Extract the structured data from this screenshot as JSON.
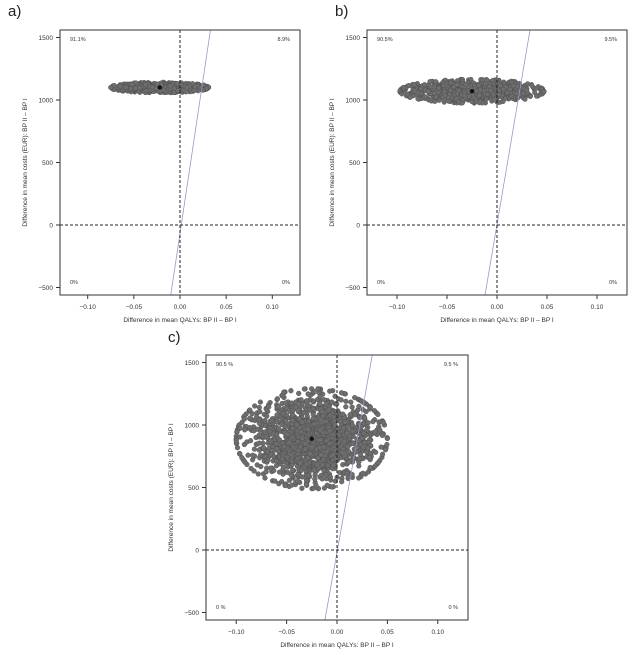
{
  "panels": [
    {
      "label": "a)"
    },
    {
      "label": "b)"
    },
    {
      "label": "c)"
    }
  ],
  "chart_data": [
    {
      "type": "scatter",
      "title": "",
      "xlabel": "Difference in mean QALYs: BP II – BP I",
      "ylabel": "Difference in mean costs (EUR): BP II – BP I",
      "xlim": [
        -0.13,
        0.13
      ],
      "ylim": [
        -560,
        1560
      ],
      "xticks": [
        -0.1,
        -0.05,
        0.0,
        0.05,
        0.1
      ],
      "xtick_labels": [
        "−0.10",
        "−0.05",
        "0.00",
        "0.05",
        "0.10"
      ],
      "yticks": [
        -500,
        0,
        500,
        1000,
        1500
      ],
      "ytick_labels": [
        "−500",
        "0",
        "500",
        "1000",
        "1500"
      ],
      "quadrant_labels": [
        "91.1%",
        "8.9%",
        "0%",
        "0%"
      ],
      "mean_point": {
        "x": -0.022,
        "y": 1100
      },
      "cloud": {
        "x_mean": -0.022,
        "y_mean": 1100,
        "x_half_range": 0.053,
        "y_half_range": 42
      },
      "wtp_line": {
        "x1": -0.01,
        "y1": -560,
        "x2": 0.033,
        "y2": 1560
      },
      "reference_lines": {
        "x": 0,
        "y": 0
      }
    },
    {
      "type": "scatter",
      "title": "",
      "xlabel": "Difference in mean QALYs: BP II – BP I",
      "ylabel": "Difference in mean costs (EUR): BP II – BP I",
      "xlim": [
        -0.13,
        0.13
      ],
      "ylim": [
        -560,
        1560
      ],
      "xticks": [
        -0.1,
        -0.05,
        0.0,
        0.05,
        0.1
      ],
      "xtick_labels": [
        "−0.10",
        "−0.05",
        "0.00",
        "0.05",
        "0.10"
      ],
      "yticks": [
        -500,
        0,
        500,
        1000,
        1500
      ],
      "ytick_labels": [
        "−500",
        "0",
        "500",
        "1000",
        "1500"
      ],
      "quadrant_labels": [
        "90.5%",
        "9.5%",
        "0%",
        "0%"
      ],
      "mean_point": {
        "x": -0.025,
        "y": 1070
      },
      "cloud": {
        "x_mean": -0.025,
        "y_mean": 1070,
        "x_half_range": 0.072,
        "y_half_range": 95
      },
      "wtp_line": {
        "x1": -0.012,
        "y1": -560,
        "x2": 0.033,
        "y2": 1560
      },
      "reference_lines": {
        "x": 0,
        "y": 0
      }
    },
    {
      "type": "scatter",
      "title": "",
      "xlabel": "Difference in mean QALYs: BP II – BP I",
      "ylabel": "Difference in mean costs (EUR): BP II – BP I",
      "xlim": [
        -0.13,
        0.13
      ],
      "ylim": [
        -560,
        1560
      ],
      "xticks": [
        -0.1,
        -0.05,
        0.0,
        0.05,
        0.1
      ],
      "xtick_labels": [
        "−0.10",
        "−0.05",
        "0.00",
        "0.05",
        "0.10"
      ],
      "yticks": [
        -500,
        0,
        500,
        1000,
        1500
      ],
      "ytick_labels": [
        "−500",
        "0",
        "500",
        "1000",
        "1500"
      ],
      "quadrant_labels": [
        "90.5 %",
        "9.5 %",
        "0 %",
        "0 %"
      ],
      "mean_point": {
        "x": -0.025,
        "y": 890
      },
      "cloud": {
        "x_mean": -0.025,
        "y_mean": 890,
        "x_half_range": 0.075,
        "y_half_range": 400
      },
      "wtp_line": {
        "x1": -0.012,
        "y1": -560,
        "x2": 0.035,
        "y2": 1560
      },
      "reference_lines": {
        "x": 0,
        "y": 0
      }
    }
  ],
  "colors": {
    "points_fill": "#6e6e6e",
    "points_stroke": "#4a4a4a",
    "mean_marker": "#111111",
    "axis": "#333333",
    "wtp_line": "#9f95c9"
  }
}
